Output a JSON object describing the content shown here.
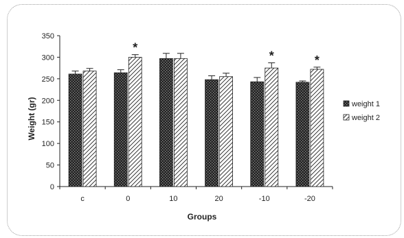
{
  "chart_data": {
    "type": "bar",
    "title": "",
    "xlabel": "Groups",
    "ylabel": "Weight (gr)",
    "ylim": [
      0,
      350
    ],
    "yticks": [
      0,
      50,
      100,
      150,
      200,
      250,
      300,
      350
    ],
    "categories": [
      "c",
      "0",
      "10",
      "20",
      "-10",
      "-20"
    ],
    "series": [
      {
        "name": "weight 1",
        "pattern": "dark-brick",
        "values": [
          261,
          264,
          297,
          248,
          243,
          242
        ],
        "errors": [
          7,
          7,
          12,
          9,
          10,
          3
        ]
      },
      {
        "name": "weight 2",
        "pattern": "diagonal-hatch",
        "values": [
          268,
          300,
          297,
          255,
          275,
          272
        ],
        "errors": [
          6,
          6,
          12,
          8,
          12,
          5
        ]
      }
    ],
    "significance_marker": "*",
    "significant_points": [
      {
        "category": "0",
        "series": "weight 2"
      },
      {
        "category": "-10",
        "series": "weight 2"
      },
      {
        "category": "-20",
        "series": "weight 2"
      }
    ],
    "legend_position": "right",
    "grid": false
  }
}
